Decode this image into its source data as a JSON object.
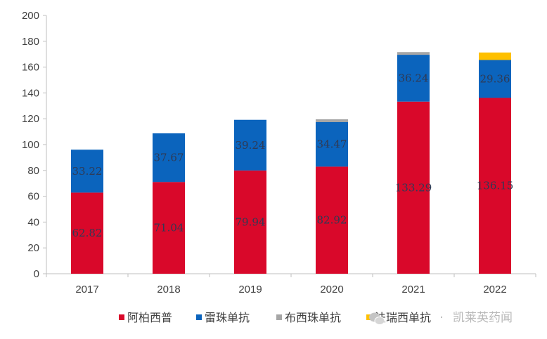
{
  "chart_data": {
    "type": "bar",
    "stacked": true,
    "categories": [
      "2017",
      "2018",
      "2019",
      "2020",
      "2021",
      "2022"
    ],
    "series": [
      {
        "name": "阿柏西普",
        "color": "#d9082a",
        "values": [
          62.82,
          71.04,
          79.94,
          82.92,
          133.29,
          136.15
        ]
      },
      {
        "name": "雷珠单抗",
        "color": "#0b64bd",
        "values": [
          33.22,
          37.67,
          39.24,
          34.47,
          36.24,
          29.36
        ]
      },
      {
        "name": "布西珠单抗",
        "color": "#a6a6a6",
        "values": [
          0,
          0,
          0,
          2.2,
          2.1,
          0
        ]
      },
      {
        "name": "法瑞西单抗",
        "color": "#fec000",
        "values": [
          0,
          0,
          0,
          0,
          0,
          5.8
        ]
      }
    ],
    "data_labels": [
      [
        "62.82",
        "71.04",
        "79.94",
        "82.92",
        "133.29",
        "136.15"
      ],
      [
        "33.22",
        "37.67",
        "39.24",
        "34.47",
        "36.24",
        "29.36"
      ]
    ],
    "y_ticks": [
      "0",
      "20",
      "40",
      "60",
      "80",
      "100",
      "120",
      "140",
      "160",
      "180",
      "200"
    ],
    "ylim": [
      0,
      200
    ],
    "grid": false,
    "legend_position": "bottom",
    "title": "",
    "xlabel": "",
    "ylabel": ""
  },
  "watermark": {
    "icon": "wechat-icon",
    "separator": "·",
    "text": "凯莱英药闻"
  }
}
